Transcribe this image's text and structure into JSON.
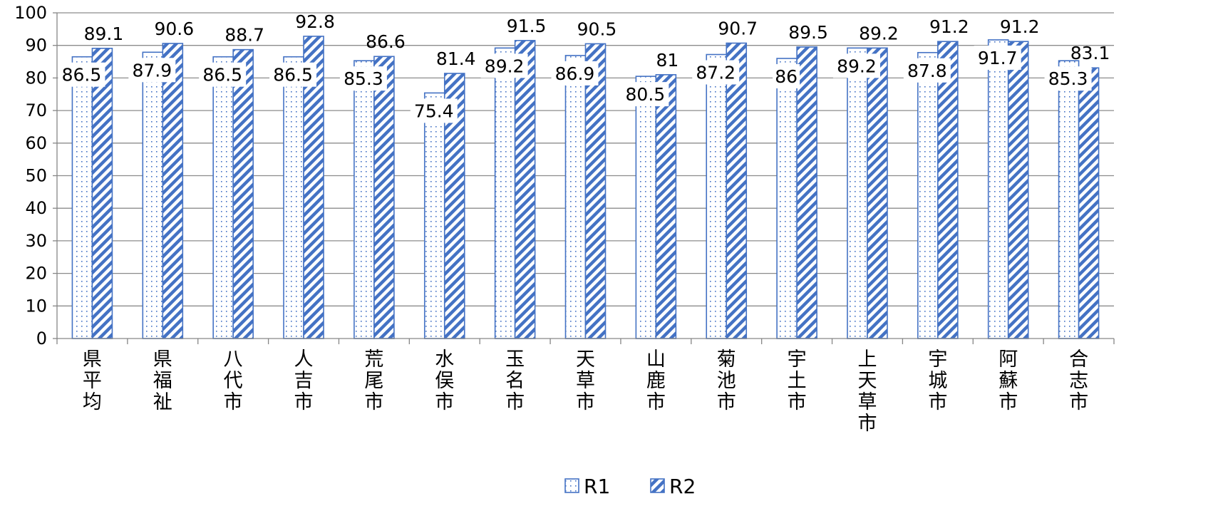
{
  "chart_data": {
    "type": "bar",
    "categories": [
      "県平均",
      "県福祉",
      "八代市",
      "人吉市",
      "荒尾市",
      "水俣市",
      "玉名市",
      "天草市",
      "山鹿市",
      "菊池市",
      "宇土市",
      "上天草市",
      "宇城市",
      "阿蘇市",
      "合志市"
    ],
    "series": [
      {
        "name": "R1",
        "values": [
          86.5,
          87.9,
          86.5,
          86.5,
          85.3,
          75.4,
          89.2,
          86.9,
          80.5,
          87.2,
          86,
          89.2,
          87.8,
          91.7,
          85.3
        ]
      },
      {
        "name": "R2",
        "values": [
          89.1,
          90.6,
          88.7,
          92.8,
          86.6,
          81.4,
          91.5,
          90.5,
          81,
          90.7,
          89.5,
          89.2,
          91.2,
          91.2,
          83.1
        ]
      }
    ],
    "ylim": [
      0,
      100
    ],
    "yticks": [
      0,
      10,
      20,
      30,
      40,
      50,
      60,
      70,
      80,
      90,
      100
    ],
    "grid": true,
    "legend": "bottom",
    "data_labels": true,
    "colors": {
      "bar_outline": "#4472c4",
      "r1_pattern": "dotted",
      "r2_pattern": "diagonal-hatch",
      "gridline": "#8c8c8c",
      "axis": "#868686"
    }
  }
}
